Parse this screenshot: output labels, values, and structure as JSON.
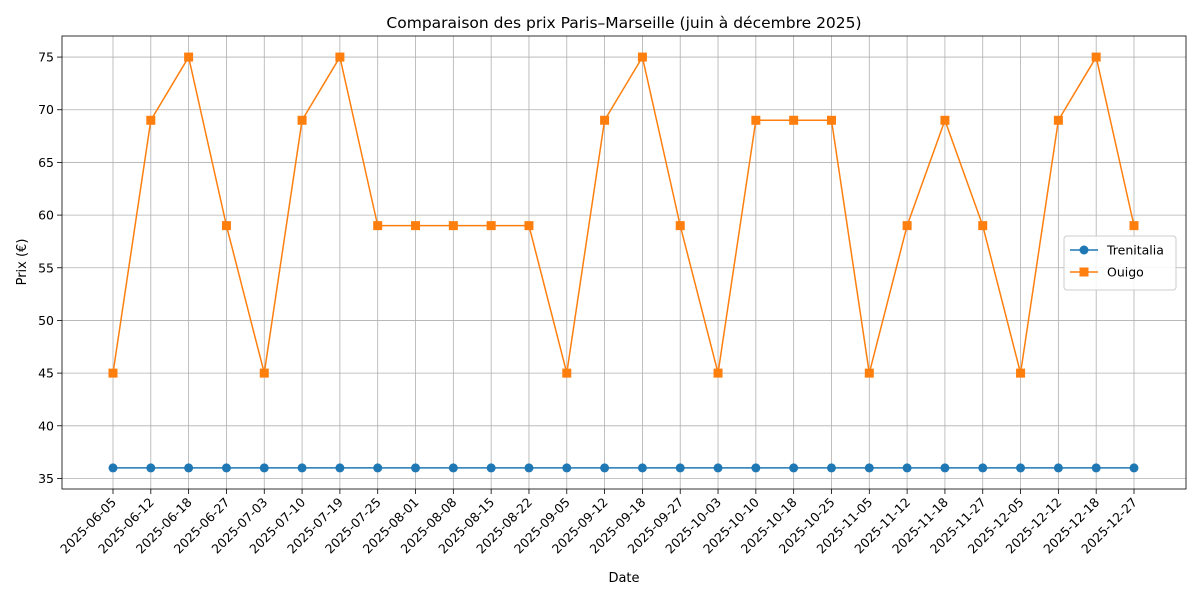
{
  "chart_data": {
    "type": "line",
    "title": "Comparaison des prix Paris–Marseille (juin à décembre 2025)",
    "xlabel": "Date",
    "ylabel": "Prix (€)",
    "ylim": [
      34,
      77
    ],
    "yticks": [
      35,
      40,
      45,
      50,
      55,
      60,
      65,
      70,
      75
    ],
    "grid": true,
    "legend_position": "center-right",
    "categories": [
      "2025-06-05",
      "2025-06-12",
      "2025-06-18",
      "2025-06-27",
      "2025-07-03",
      "2025-07-10",
      "2025-07-19",
      "2025-07-25",
      "2025-08-01",
      "2025-08-08",
      "2025-08-15",
      "2025-08-22",
      "2025-09-05",
      "2025-09-12",
      "2025-09-18",
      "2025-09-27",
      "2025-10-03",
      "2025-10-10",
      "2025-10-18",
      "2025-10-25",
      "2025-11-05",
      "2025-11-12",
      "2025-11-18",
      "2025-11-27",
      "2025-12-05",
      "2025-12-12",
      "2025-12-18",
      "2025-12-27"
    ],
    "series": [
      {
        "name": "Trenitalia",
        "color": "#1f77b4",
        "marker": "circle",
        "values": [
          36,
          36,
          36,
          36,
          36,
          36,
          36,
          36,
          36,
          36,
          36,
          36,
          36,
          36,
          36,
          36,
          36,
          36,
          36,
          36,
          36,
          36,
          36,
          36,
          36,
          36,
          36,
          36
        ]
      },
      {
        "name": "Ouigo",
        "color": "#ff7f0e",
        "marker": "square",
        "values": [
          45,
          69,
          75,
          59,
          45,
          69,
          75,
          59,
          59,
          59,
          59,
          59,
          45,
          69,
          75,
          59,
          45,
          69,
          69,
          69,
          45,
          59,
          69,
          59,
          45,
          69,
          75,
          59
        ]
      }
    ]
  }
}
